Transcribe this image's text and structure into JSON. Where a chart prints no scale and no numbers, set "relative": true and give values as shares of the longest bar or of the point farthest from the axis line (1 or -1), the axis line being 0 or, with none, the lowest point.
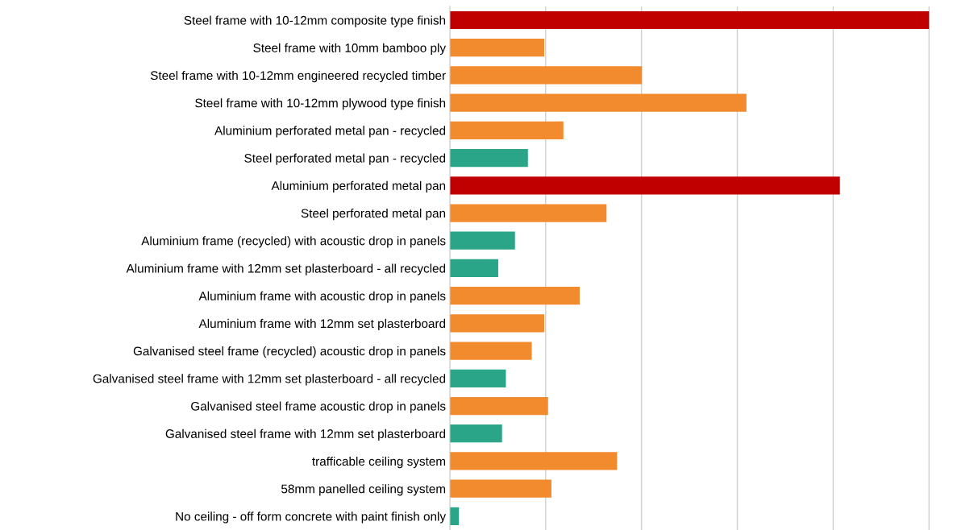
{
  "chart_data": {
    "type": "bar",
    "orientation": "horizontal",
    "relative": true,
    "grid": "x",
    "categories": [
      "Steel frame with 10-12mm composite type finish",
      "Steel frame with 10mm bamboo ply",
      "Steel frame with 10-12mm engineered recycled timber",
      "Steel frame with 10-12mm plywood type finish",
      "Aluminium perforated metal pan - recycled",
      "Steel perforated metal pan - recycled",
      "Aluminium perforated metal pan",
      "Steel perforated metal pan",
      "Aluminium frame (recycled) with acoustic drop in panels",
      "Aluminium frame with 12mm set plasterboard - all recycled",
      "Aluminium frame with acoustic drop in panels",
      "Aluminium frame with 12mm set plasterboard",
      "Galvanised steel frame (recycled) acoustic drop in panels",
      "Galvanised steel frame with 12mm set plasterboard - all recycled",
      "Galvanised steel frame acoustic drop in panels",
      "Galvanised steel frame with 12mm set plasterboard",
      "trafficable ceiling system",
      "58mm panelled ceiling system",
      "No ceiling - off form concrete with paint finish only"
    ],
    "values": [
      1.0,
      0.197,
      0.401,
      0.619,
      0.237,
      0.163,
      0.814,
      0.327,
      0.136,
      0.101,
      0.271,
      0.197,
      0.171,
      0.117,
      0.205,
      0.109,
      0.349,
      0.212,
      0.019
    ],
    "colors": [
      "#c00000",
      "#f28a2e",
      "#f28a2e",
      "#f28a2e",
      "#f28a2e",
      "#2aa587",
      "#c00000",
      "#f28a2e",
      "#2aa587",
      "#2aa587",
      "#f28a2e",
      "#f28a2e",
      "#f28a2e",
      "#2aa587",
      "#f28a2e",
      "#2aa587",
      "#f28a2e",
      "#f28a2e",
      "#2aa587"
    ]
  }
}
